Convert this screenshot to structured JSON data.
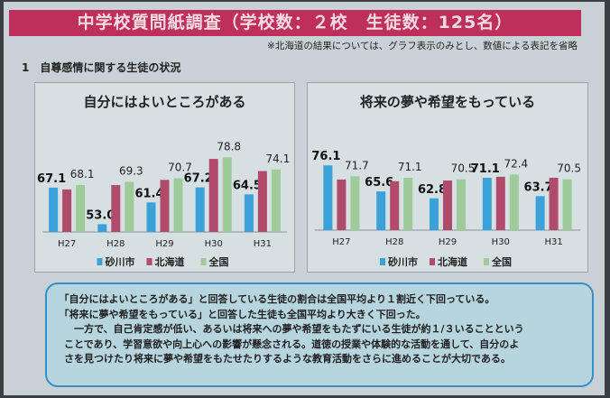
{
  "header": {
    "title": "中学校質問紙調査（学校数：２校　生徒数：125名）",
    "note": "※北海道の結果については、グラフ表示のみとし、数値による表記を省略",
    "section": "1　自尊感情に関する生徒の状況"
  },
  "colors": {
    "sunagawa": "#3aa2d8",
    "hokkaido": "#b14b6c",
    "national": "#9fcb9b"
  },
  "chart_data": [
    {
      "type": "bar",
      "title": "自分にはよいところがある",
      "categories": [
        "H27",
        "H28",
        "H29",
        "H30",
        "H31"
      ],
      "ylim": [
        50,
        82
      ],
      "series": [
        {
          "name": "砂川市",
          "values": [
            67.1,
            53.0,
            61.4,
            67.2,
            64.5
          ],
          "labels": [
            "67.1",
            "53.0",
            "61.4",
            "67.2",
            "64.5"
          ]
        },
        {
          "name": "北海道",
          "values": [
            66.4,
            68.1,
            70.1,
            78.2,
            73.5
          ]
        },
        {
          "name": "全国",
          "values": [
            68.1,
            69.3,
            70.7,
            78.8,
            74.1
          ],
          "labels": [
            "68.1",
            "69.3",
            "70.7",
            "78.8",
            "74.1"
          ]
        }
      ],
      "legend": "bottom"
    },
    {
      "type": "bar",
      "title": "将来の夢や希望をもっている",
      "categories": [
        "H27",
        "H28",
        "H29",
        "H30",
        "H31"
      ],
      "ylim": [
        50,
        82
      ],
      "series": [
        {
          "name": "砂川市",
          "values": [
            76.1,
            65.6,
            62.8,
            71.1,
            63.7
          ],
          "labels": [
            "76.1",
            "65.6",
            "62.8",
            "71.1",
            "63.7"
          ]
        },
        {
          "name": "北海道",
          "values": [
            70.4,
            69.7,
            70.0,
            71.5,
            71.1
          ]
        },
        {
          "name": "全国",
          "values": [
            71.7,
            71.1,
            70.5,
            72.4,
            70.5
          ],
          "labels": [
            "71.7",
            "71.1",
            "70.5",
            "72.4",
            "70.5"
          ]
        }
      ],
      "legend": "bottom"
    }
  ],
  "summary": {
    "lines": [
      "　「自分にはよいところがある」と回答している生徒の割合は全国平均より１割近く下回っている。",
      "　「将来に夢や希望をもっている」と回答した生徒も全国平均より大きく下回った。",
      "　　一方で、自己肯定感が低い、あるいは将来への夢や希望をもたずにいる生徒が約１/３いることという",
      "　ことであり、学習意欲や向上心への影響が懸念される。道徳の授業や体験的な活動を通して、自分のよ",
      "　さを見つけたり将来に夢や希望をもたせたりするような教育活動をさらに進めることが大切である。"
    ]
  }
}
